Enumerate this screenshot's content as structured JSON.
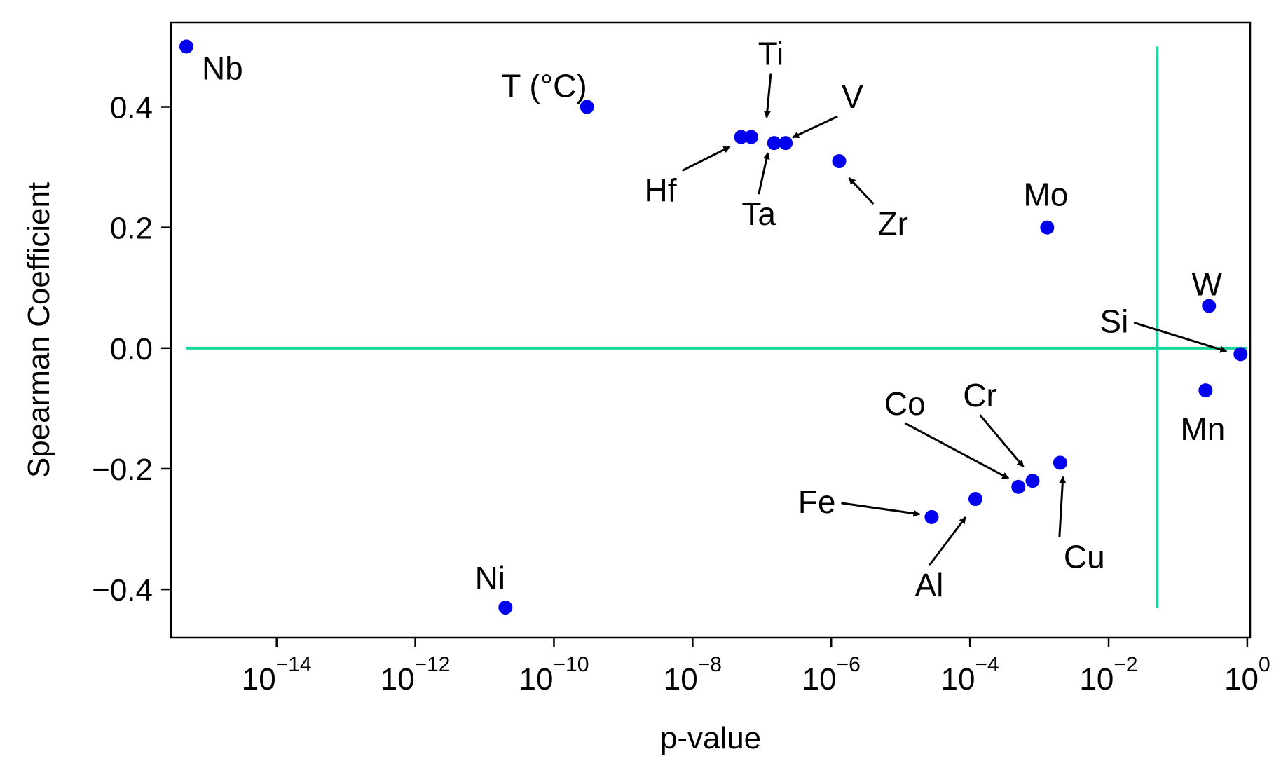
{
  "chart_data": {
    "type": "scatter",
    "xlabel": "p-value",
    "ylabel": "Spearman Coefficient",
    "x_scale": "log",
    "xlim": [
      3e-16,
      1.1
    ],
    "ylim": [
      -0.48,
      0.54
    ],
    "x_ticks": [
      {
        "base": "10",
        "exp": "−14",
        "value": 1e-14
      },
      {
        "base": "10",
        "exp": "−12",
        "value": 1e-12
      },
      {
        "base": "10",
        "exp": "−10",
        "value": 1e-10
      },
      {
        "base": "10",
        "exp": "−8",
        "value": 1e-08
      },
      {
        "base": "10",
        "exp": "−6",
        "value": 1e-06
      },
      {
        "base": "10",
        "exp": "−4",
        "value": 0.0001
      },
      {
        "base": "10",
        "exp": "−2",
        "value": 0.01
      },
      {
        "base": "10",
        "exp": "0",
        "value": 1
      }
    ],
    "y_ticks": [
      {
        "label": "0.4",
        "value": 0.4
      },
      {
        "label": "0.2",
        "value": 0.2
      },
      {
        "label": "0.0",
        "value": 0.0
      },
      {
        "label": "−0.2",
        "value": -0.2
      },
      {
        "label": "−0.4",
        "value": -0.4
      }
    ],
    "point_color": "#0000ee",
    "reference_line_color": "#1ad69c",
    "reference_lines": {
      "horizontal": {
        "y": 0.0,
        "x_from": 5e-16,
        "x_to": 1
      },
      "vertical": {
        "x": 0.05,
        "y_from": -0.43,
        "y_to": 0.5
      }
    },
    "points": [
      {
        "label": "Nb",
        "x": 5e-16,
        "y": 0.5,
        "anchor": "start",
        "dx": 22,
        "dy": 47,
        "arrow": false
      },
      {
        "label": "T (°C)",
        "x": 3e-10,
        "y": 0.4,
        "anchor": "end",
        "dx": 0,
        "dy": -14,
        "arrow": false
      },
      {
        "label": "Ti",
        "x": 7e-08,
        "y": 0.35,
        "anchor": "middle",
        "dx": 28,
        "dy": -103,
        "arrow": true,
        "tx": 22,
        "ty": -28
      },
      {
        "label": "Hf",
        "x": 5e-08,
        "y": 0.35,
        "anchor": "end",
        "dx": -92,
        "dy": 92,
        "arrow": true,
        "tx": -16,
        "ty": 14
      },
      {
        "label": "Ta",
        "x": 1.5e-07,
        "y": 0.34,
        "anchor": "middle",
        "dx": -22,
        "dy": 117,
        "arrow": true,
        "tx": -9,
        "ty": 14
      },
      {
        "label": "V",
        "x": 2.2e-07,
        "y": 0.34,
        "anchor": "start",
        "dx": 80,
        "dy": -50,
        "arrow": true,
        "tx": 10,
        "ty": -8
      },
      {
        "label": "Zr",
        "x": 1.3e-06,
        "y": 0.31,
        "anchor": "start",
        "dx": 55,
        "dy": 105,
        "arrow": true,
        "tx": 14,
        "ty": 24
      },
      {
        "label": "Mo",
        "x": 0.0013,
        "y": 0.2,
        "anchor": "middle",
        "dx": -2,
        "dy": -31,
        "arrow": false
      },
      {
        "label": "W",
        "x": 0.28,
        "y": 0.07,
        "anchor": "middle",
        "dx": -3,
        "dy": -15,
        "arrow": false
      },
      {
        "label": "Si",
        "x": 0.8,
        "y": -0.01,
        "anchor": "end",
        "dx": -160,
        "dy": -31,
        "arrow": true,
        "tx": -20,
        "ty": -4
      },
      {
        "label": "Mn",
        "x": 0.25,
        "y": -0.07,
        "anchor": "middle",
        "dx": -4,
        "dy": 71,
        "arrow": false
      },
      {
        "label": "Cr",
        "x": 0.0008,
        "y": -0.22,
        "anchor": "middle",
        "dx": -75,
        "dy": -106,
        "arrow": true,
        "tx": -13,
        "ty": -20
      },
      {
        "label": "Co",
        "x": 0.0005,
        "y": -0.23,
        "anchor": "middle",
        "dx": -162,
        "dy": -103,
        "arrow": true,
        "tx": -14,
        "ty": -12
      },
      {
        "label": "Cu",
        "x": 0.002,
        "y": -0.19,
        "anchor": "start",
        "dx": 5,
        "dy": 150,
        "arrow": true,
        "tx": 4,
        "ty": 20
      },
      {
        "label": "Fe",
        "x": 2.8e-05,
        "y": -0.28,
        "anchor": "end",
        "dx": -137,
        "dy": -6,
        "arrow": true,
        "tx": -17,
        "ty": -4
      },
      {
        "label": "Al",
        "x": 0.00012,
        "y": -0.25,
        "anchor": "middle",
        "dx": -66,
        "dy": 139,
        "arrow": true,
        "tx": -14,
        "ty": 26
      },
      {
        "label": "Ni",
        "x": 2e-11,
        "y": -0.43,
        "anchor": "middle",
        "dx": -22,
        "dy": -26,
        "arrow": false
      }
    ]
  }
}
